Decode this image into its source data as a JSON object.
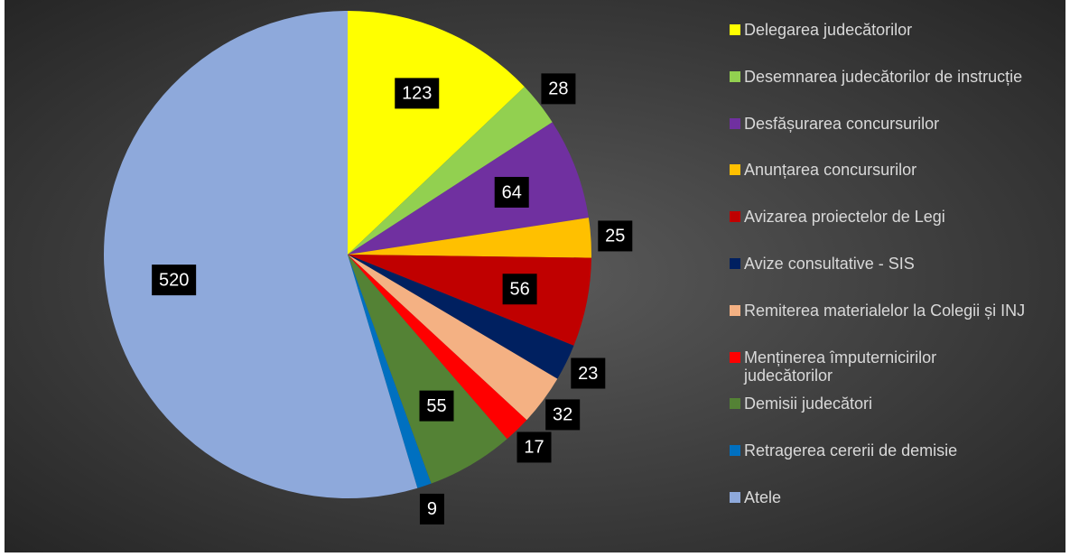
{
  "chart_data": {
    "type": "pie",
    "categories": [
      "Delegarea judecătorilor",
      "Desemnarea judecătorilor de instrucție",
      "Desfășurarea concursurilor",
      "Anunțarea concursurilor",
      "Avizarea proiectelor de Legi",
      "Avize consultative - SIS",
      "Remiterea materialelor la Colegii și INJ",
      "Menținerea împuternicirilor judecătorilor",
      "Demisii judecători",
      "Retragerea cererii de demisie",
      "Atele"
    ],
    "values": [
      123,
      28,
      64,
      25,
      56,
      23,
      32,
      17,
      55,
      9,
      520
    ],
    "colors": [
      "#ffff00",
      "#92d050",
      "#7030a0",
      "#ffc000",
      "#c00000",
      "#002060",
      "#f4b183",
      "#ff0000",
      "#548235",
      "#0070c0",
      "#8ea9db"
    ],
    "legend": "right"
  }
}
